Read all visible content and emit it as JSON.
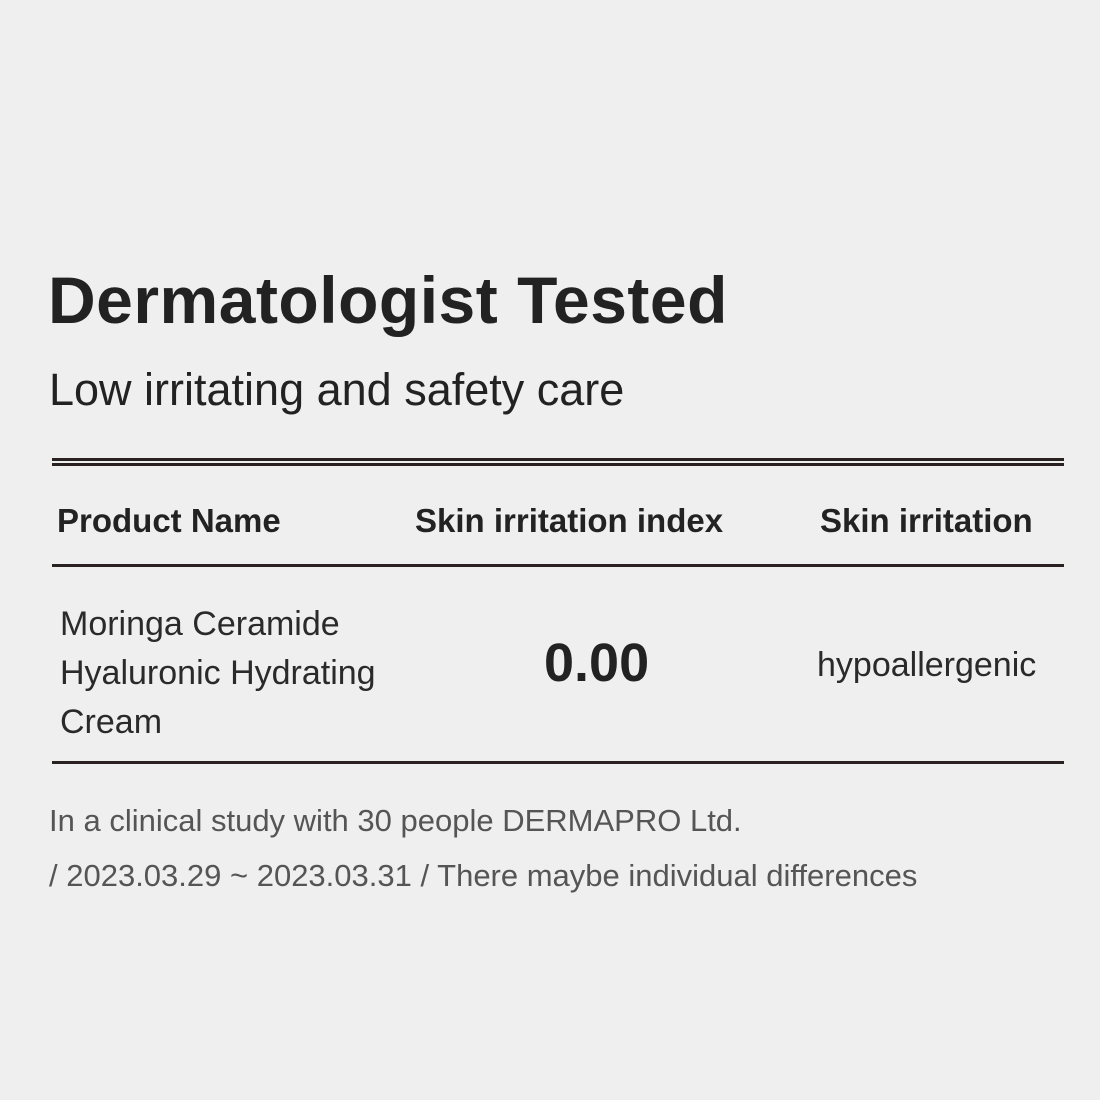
{
  "title": "Dermatologist Tested",
  "subtitle": "Low irritating and safety care",
  "table": {
    "headers": [
      "Product Name",
      "Skin irritation index",
      "Skin irritation"
    ],
    "row": {
      "product_lines": [
        "Moringa Ceramide",
        "Hyaluronic Hydrating",
        "Cream"
      ],
      "index": "0.00",
      "result": "hypoallergenic"
    }
  },
  "notes": [
    "In a clinical study with 30 people DERMAPRO Ltd.",
    "/ 2023.03.29 ~ 2023.03.31 / There maybe individual differences"
  ],
  "colors": {
    "background": "#efefef",
    "text": "#222222",
    "rule": "#2a2220",
    "note": "#555555"
  }
}
